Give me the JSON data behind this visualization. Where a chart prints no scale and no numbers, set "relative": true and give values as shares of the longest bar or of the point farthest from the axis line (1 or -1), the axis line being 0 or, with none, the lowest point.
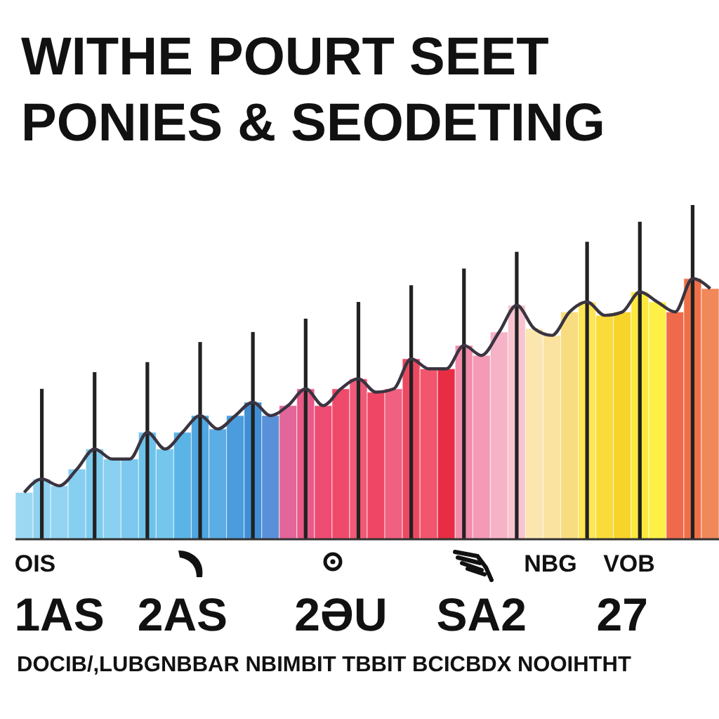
{
  "chart_data": {
    "type": "bar",
    "title": "WITHE POURT SEET",
    "subtitle": "PONIES & SEODETING",
    "xlabel": "DOCIB/,LUBGNBBAR NBIMBIT TBBIT BCICBDX NOOIHTHT",
    "annotations": [
      "OIS",
      "NBG",
      "VOB"
    ],
    "relative": true,
    "categories": [
      null,
      null,
      "1AS",
      null,
      null,
      null,
      null,
      null,
      null,
      "2AS",
      null,
      null,
      null,
      null,
      null,
      null,
      null,
      null,
      "2ƏU",
      null,
      null,
      null,
      null,
      null,
      null,
      null,
      "SA2",
      null,
      null,
      null,
      null,
      null,
      null,
      null,
      "27",
      null,
      null,
      null,
      null,
      null
    ],
    "series": [
      {
        "colors": [
          "#9cd8f2",
          "#8ed2f0",
          "#92d4f2",
          "#86cff0",
          "#7ecbee",
          "#8ad0f0",
          "#7cc8ee",
          "#6ec3ec",
          "#74c6ed",
          "#5ab4e6",
          "#4fa6e0",
          "#5aaee4",
          "#4b9cdc",
          "#3f8fd6",
          "#5a90d8",
          "#e2669a",
          "#e85a88",
          "#ee4c72",
          "#f04a6a",
          "#f05a78",
          "#ee4664",
          "#f06080",
          "#ec4862",
          "#f2566e",
          "#e82c44",
          "#f28cab",
          "#f49ab6",
          "#f6b2c6",
          "#f8c4d0",
          "#fbe6b0",
          "#fae2a0",
          "#f8dc80",
          "#fde654",
          "#f9dc3a",
          "#f6d42a",
          "#fde83c",
          "#fff048",
          "#ee6a4a",
          "#ee7048",
          "#f0885a"
        ],
        "values": [
          0.14,
          0.18,
          0.16,
          0.21,
          0.27,
          0.24,
          0.24,
          0.32,
          0.27,
          0.32,
          0.37,
          0.33,
          0.37,
          0.41,
          0.37,
          0.4,
          0.45,
          0.4,
          0.45,
          0.48,
          0.44,
          0.45,
          0.54,
          0.51,
          0.51,
          0.58,
          0.55,
          0.62,
          0.7,
          0.63,
          0.61,
          0.68,
          0.71,
          0.67,
          0.68,
          0.74,
          0.71,
          0.68,
          0.78,
          0.75
        ]
      },
      {
        "type": "line",
        "color": "#3a3440",
        "values": [
          0.14,
          0.18,
          0.16,
          0.21,
          0.27,
          0.24,
          0.24,
          0.32,
          0.27,
          0.32,
          0.37,
          0.33,
          0.37,
          0.41,
          0.37,
          0.4,
          0.45,
          0.4,
          0.45,
          0.48,
          0.44,
          0.45,
          0.54,
          0.51,
          0.51,
          0.58,
          0.55,
          0.62,
          0.7,
          0.63,
          0.61,
          0.68,
          0.71,
          0.67,
          0.68,
          0.74,
          0.71,
          0.68,
          0.78,
          0.75
        ]
      },
      {
        "color": "#222222",
        "values": [
          null,
          0.45,
          null,
          null,
          0.5,
          null,
          null,
          0.53,
          null,
          null,
          0.59,
          null,
          null,
          0.62,
          null,
          null,
          0.66,
          null,
          null,
          0.71,
          null,
          null,
          0.76,
          null,
          null,
          0.81,
          null,
          null,
          0.86,
          null,
          null,
          null,
          0.89,
          null,
          null,
          0.95,
          null,
          null,
          1,
          null
        ]
      }
    ]
  }
}
